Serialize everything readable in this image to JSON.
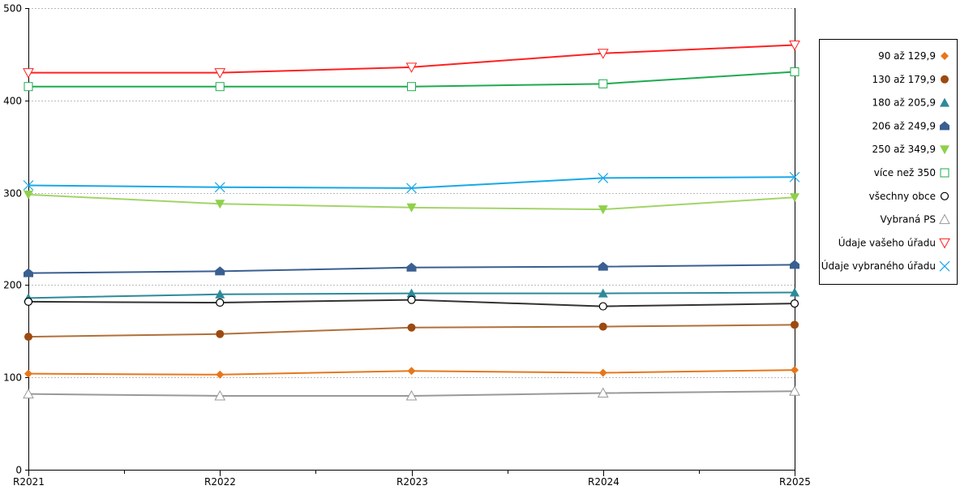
{
  "chart_data": {
    "type": "line",
    "title": "",
    "xlabel": "",
    "ylabel": "",
    "categories": [
      "R2021",
      "R2022",
      "R2023",
      "R2024",
      "R2025"
    ],
    "ylim": [
      0,
      500
    ],
    "yticks": [
      0,
      100,
      200,
      300,
      400,
      500
    ],
    "grid": true,
    "legend_position": "right",
    "series": [
      {
        "name": "90 až 129,9",
        "color": "#e8761a",
        "marker": "diamond",
        "values": [
          104,
          103,
          107,
          105,
          108
        ]
      },
      {
        "name": "130 až 179,9",
        "color": "#9c4a10",
        "line": "#b0703a",
        "marker": "circle",
        "values": [
          144,
          147,
          154,
          155,
          157
        ]
      },
      {
        "name": "180 až 205,9",
        "color": "#2e8a9a",
        "marker": "triangle",
        "values": [
          186,
          190,
          191,
          191,
          192
        ]
      },
      {
        "name": "206 až 249,9",
        "color": "#3a5f91",
        "marker": "house",
        "values": [
          213,
          215,
          219,
          220,
          222
        ]
      },
      {
        "name": "250 až 349,9",
        "color": "#8fd04a",
        "line": "#a3d46a",
        "marker": "triangle-down",
        "values": [
          298,
          288,
          284,
          282,
          295
        ]
      },
      {
        "name": "více než 350",
        "color": "#1faa50",
        "marker": "square-open",
        "values": [
          415,
          415,
          415,
          418,
          431
        ]
      },
      {
        "name": "všechny obce",
        "color": "#000000",
        "line": "#333333",
        "marker": "circle-open",
        "values": [
          182,
          181,
          184,
          177,
          180
        ]
      },
      {
        "name": "Vybraná PS",
        "color": "#999999",
        "marker": "triangle-open",
        "values": [
          82,
          80,
          80,
          83,
          85
        ]
      },
      {
        "name": "Údaje vašeho úřadu",
        "color": "#ff2020",
        "marker": "triangle-down-open",
        "values": [
          430,
          430,
          436,
          451,
          460
        ]
      },
      {
        "name": "Údaje vybraného úřadu",
        "color": "#18a8e8",
        "marker": "x",
        "values": [
          308,
          306,
          305,
          316,
          317
        ]
      }
    ]
  }
}
